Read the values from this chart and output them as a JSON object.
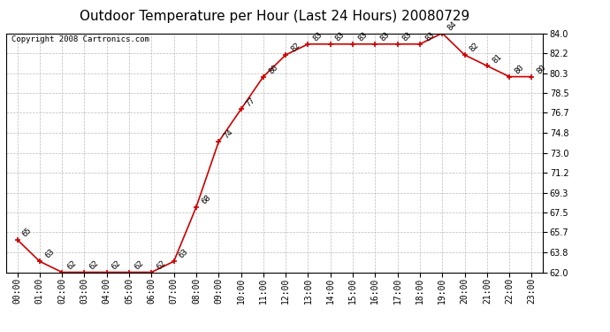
{
  "title": "Outdoor Temperature per Hour (Last 24 Hours) 20080729",
  "copyright": "Copyright 2008 Cartronics.com",
  "hours": [
    0,
    1,
    2,
    3,
    4,
    5,
    6,
    7,
    8,
    9,
    10,
    11,
    12,
    13,
    14,
    15,
    16,
    17,
    18,
    19,
    20,
    21,
    22,
    23
  ],
  "temps": [
    65,
    63,
    62,
    62,
    62,
    62,
    62,
    63,
    68,
    74,
    77,
    80,
    82,
    83,
    83,
    83,
    83,
    83,
    83,
    84,
    82,
    81,
    80,
    80
  ],
  "xlabels": [
    "00:00",
    "01:00",
    "02:00",
    "03:00",
    "04:00",
    "05:00",
    "06:00",
    "07:00",
    "08:00",
    "09:00",
    "10:00",
    "11:00",
    "12:00",
    "13:00",
    "14:00",
    "15:00",
    "16:00",
    "17:00",
    "18:00",
    "19:00",
    "20:00",
    "21:00",
    "22:00",
    "23:00"
  ],
  "ymin": 62.0,
  "ymax": 84.0,
  "yticks": [
    62.0,
    63.8,
    65.7,
    67.5,
    69.3,
    71.2,
    73.0,
    74.8,
    76.7,
    78.5,
    80.3,
    82.2,
    84.0
  ],
  "line_color": "#cc0000",
  "marker_color": "#cc0000",
  "bg_color": "#ffffff",
  "grid_color": "#bbbbbb",
  "title_fontsize": 11,
  "copyright_fontsize": 6.5,
  "label_fontsize": 6.5,
  "tick_fontsize": 7
}
